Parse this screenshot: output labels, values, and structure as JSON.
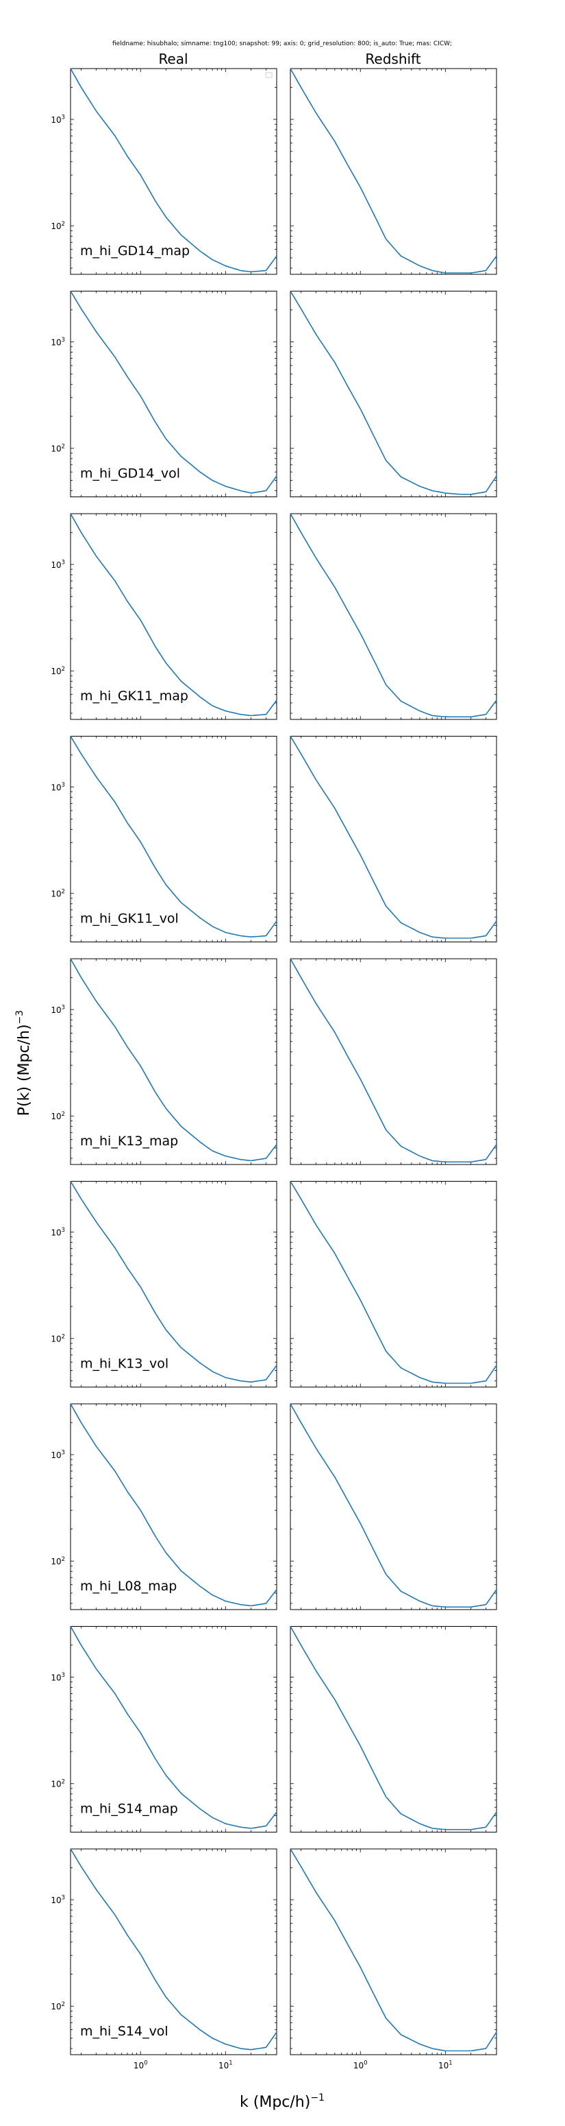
{
  "suptitle": "fieldname: hisubhalo; simname: tng100; snapshot: 99; axis: 0; grid_resolution: 800; is_auto: True; mas: CICW;",
  "column_titles": [
    "Real",
    "Redshift"
  ],
  "xlabel": "k (Mpc/h)",
  "xlabel_exp": "−1",
  "ylabel": "P(k) (Mpc/h)",
  "ylabel_exp": "−3",
  "x_tick_labels": [
    {
      "base": "10",
      "exp": "0"
    },
    {
      "base": "10",
      "exp": "1"
    }
  ],
  "y_tick_labels": [
    {
      "base": "10",
      "exp": "3"
    },
    {
      "base": "10",
      "exp": "2"
    }
  ],
  "colors": {
    "line": "#1f77b4",
    "axes": "#000000"
  },
  "chart_data": {
    "type": "line",
    "x_scale": "log",
    "y_scale": "log",
    "xlim": [
      0.15,
      40
    ],
    "ylim": [
      35,
      3000
    ],
    "legend": "top-right (empty box in first panel)",
    "k": [
      0.15,
      0.2,
      0.3,
      0.5,
      0.7,
      1,
      1.5,
      2,
      3,
      5,
      7,
      10,
      15,
      20,
      30,
      40
    ],
    "rows": [
      {
        "label": "m_hi_GD14_map",
        "real": [
          3000,
          2000,
          1200,
          700,
          450,
          300,
          170,
          120,
          82,
          58,
          48,
          42,
          38,
          37,
          38,
          52
        ],
        "redshift": [
          3000,
          2000,
          1150,
          620,
          380,
          230,
          120,
          75,
          52,
          42,
          38,
          36,
          36,
          36,
          38,
          52
        ]
      },
      {
        "label": "m_hi_GD14_vol",
        "real": [
          3000,
          2050,
          1250,
          720,
          470,
          310,
          175,
          122,
          84,
          60,
          50,
          44,
          40,
          38,
          40,
          55
        ],
        "redshift": [
          3000,
          2050,
          1180,
          640,
          390,
          235,
          122,
          77,
          54,
          44,
          40,
          38,
          37,
          37,
          39,
          55
        ]
      },
      {
        "label": "m_hi_GK11_map",
        "real": [
          3000,
          2000,
          1200,
          700,
          450,
          300,
          168,
          118,
          80,
          57,
          47,
          42,
          39,
          38,
          39,
          53
        ],
        "redshift": [
          3000,
          2000,
          1150,
          610,
          375,
          225,
          118,
          74,
          52,
          42,
          38,
          37,
          37,
          37,
          39,
          53
        ]
      },
      {
        "label": "m_hi_GK11_vol",
        "real": [
          3000,
          2050,
          1250,
          720,
          460,
          305,
          172,
          120,
          82,
          59,
          49,
          43,
          40,
          39,
          40,
          55
        ],
        "redshift": [
          3000,
          2050,
          1170,
          630,
          385,
          230,
          120,
          76,
          53,
          43,
          39,
          38,
          38,
          38,
          40,
          55
        ]
      },
      {
        "label": "m_hi_K13_map",
        "real": [
          3000,
          2000,
          1200,
          690,
          445,
          295,
          166,
          117,
          80,
          57,
          47,
          42,
          39,
          38,
          40,
          54
        ],
        "redshift": [
          3000,
          2000,
          1140,
          610,
          370,
          222,
          117,
          74,
          52,
          42,
          38,
          37,
          37,
          37,
          39,
          54
        ]
      },
      {
        "label": "m_hi_K13_vol",
        "real": [
          3000,
          2050,
          1250,
          710,
          460,
          305,
          172,
          120,
          82,
          59,
          49,
          43,
          40,
          39,
          41,
          56
        ],
        "redshift": [
          3000,
          2050,
          1170,
          630,
          385,
          230,
          120,
          76,
          53,
          43,
          39,
          38,
          38,
          38,
          40,
          56
        ]
      },
      {
        "label": "m_hi_L08_map",
        "real": [
          3000,
          2000,
          1200,
          700,
          450,
          300,
          170,
          119,
          81,
          58,
          48,
          42,
          39,
          38,
          40,
          54
        ],
        "redshift": [
          3000,
          2000,
          1150,
          615,
          378,
          226,
          118,
          75,
          52,
          42,
          38,
          37,
          37,
          37,
          39,
          54
        ]
      },
      {
        "label": "m_hi_S14_map",
        "real": [
          3000,
          2000,
          1200,
          700,
          452,
          300,
          170,
          119,
          81,
          58,
          48,
          42,
          39,
          38,
          40,
          54
        ],
        "redshift": [
          3000,
          2000,
          1150,
          615,
          378,
          226,
          118,
          75,
          52,
          42,
          38,
          37,
          37,
          37,
          39,
          54
        ]
      },
      {
        "label": "m_hi_S14_vol",
        "real": [
          3000,
          2050,
          1250,
          720,
          465,
          308,
          174,
          121,
          83,
          60,
          50,
          44,
          40,
          39,
          41,
          57
        ],
        "redshift": [
          3000,
          2050,
          1175,
          635,
          388,
          232,
          121,
          77,
          54,
          44,
          40,
          38,
          38,
          38,
          40,
          57
        ]
      }
    ]
  }
}
